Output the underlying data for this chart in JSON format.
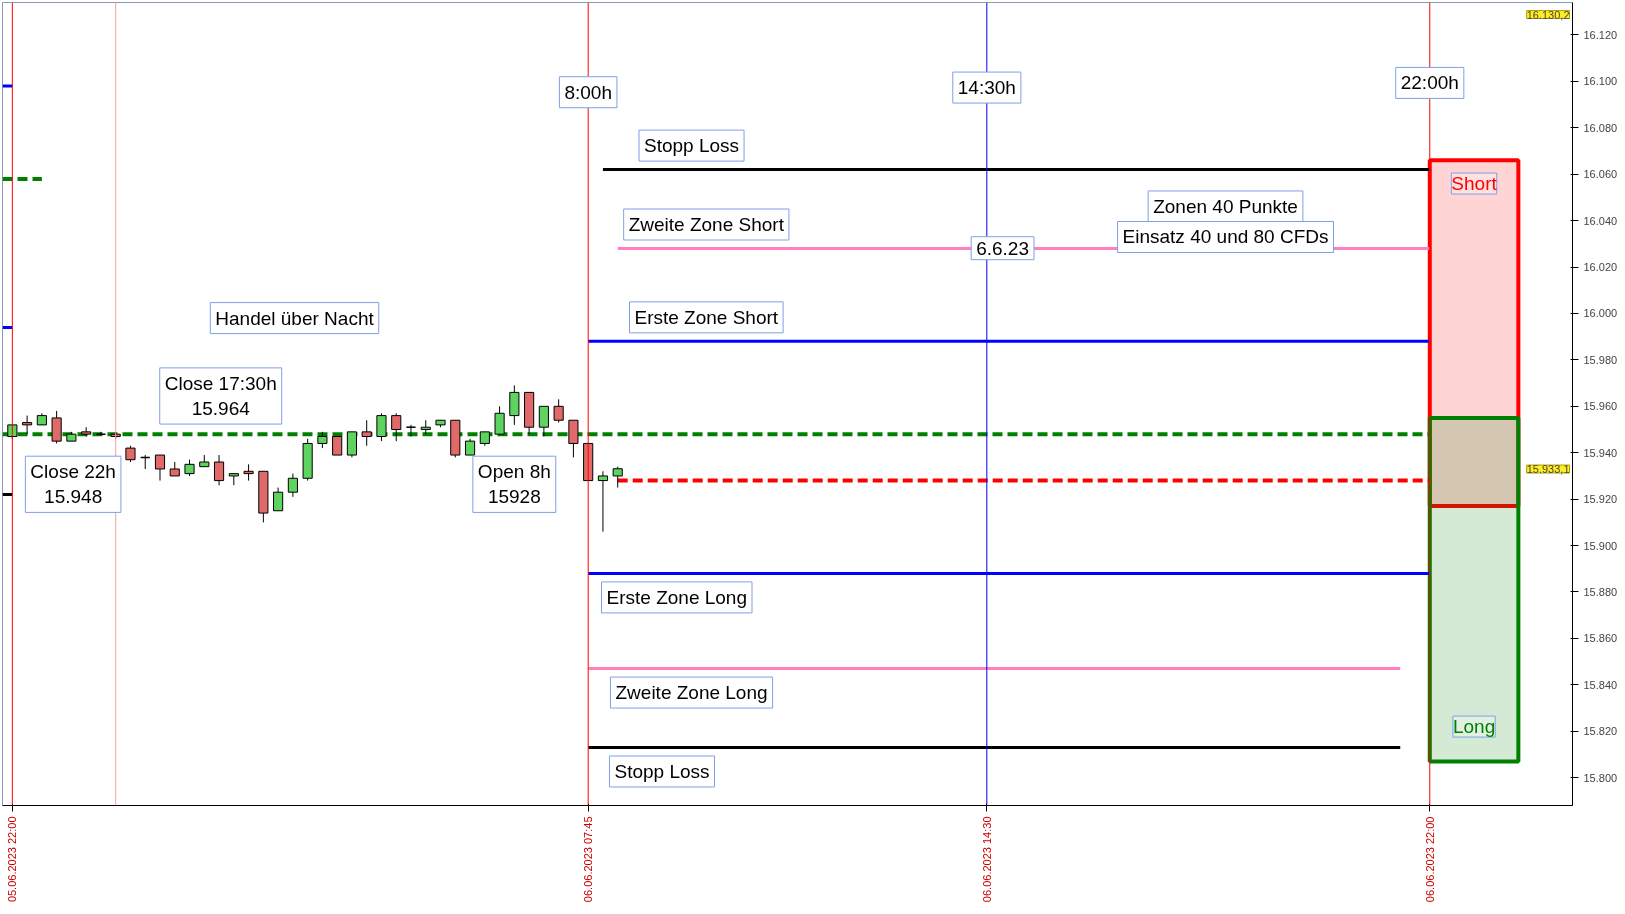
{
  "chart_data": {
    "type": "candlestick",
    "x": [
      "2023-06-05T22:00",
      "2023-06-05T22:15",
      "2023-06-05T22:30",
      "2023-06-05T22:45",
      "2023-06-05T23:00",
      "2023-06-05T23:15",
      "2023-06-05T23:30",
      "2023-06-05T23:45",
      "2023-06-06T00:00",
      "2023-06-06T00:15",
      "2023-06-06T00:30",
      "2023-06-06T00:45",
      "2023-06-06T01:00",
      "2023-06-06T01:15",
      "2023-06-06T01:30",
      "2023-06-06T01:45",
      "2023-06-06T02:00",
      "2023-06-06T02:15",
      "2023-06-06T02:30",
      "2023-06-06T02:45",
      "2023-06-06T03:00",
      "2023-06-06T03:15",
      "2023-06-06T03:30",
      "2023-06-06T03:45",
      "2023-06-06T04:00",
      "2023-06-06T04:15",
      "2023-06-06T04:30",
      "2023-06-06T04:45",
      "2023-06-06T05:00",
      "2023-06-06T05:15",
      "2023-06-06T05:30",
      "2023-06-06T05:45",
      "2023-06-06T06:00",
      "2023-06-06T06:15",
      "2023-06-06T06:30",
      "2023-06-06T06:45",
      "2023-06-06T07:00",
      "2023-06-06T07:15",
      "2023-06-06T07:30",
      "2023-06-06T07:45",
      "2023-06-06T08:00",
      "2023-06-06T08:15"
    ],
    "ohlc": [
      [
        15947,
        15952,
        15946,
        15952
      ],
      [
        15953,
        15956,
        15948,
        15952
      ],
      [
        15952,
        15957,
        15952,
        15956
      ],
      [
        15955,
        15958,
        15944,
        15945
      ],
      [
        15945,
        15949,
        15945,
        15948
      ],
      [
        15949,
        15951,
        15947,
        15948
      ],
      [
        15948,
        15949,
        15948,
        15948
      ],
      [
        15948,
        15949,
        15946,
        15947
      ],
      [
        15942,
        15943,
        15936,
        15937
      ],
      [
        15938,
        15939,
        15933,
        15938
      ],
      [
        15939,
        15939,
        15928,
        15933
      ],
      [
        15933,
        15936,
        15930,
        15930
      ],
      [
        15931,
        15937,
        15930,
        15935
      ],
      [
        15934,
        15939,
        15934,
        15936
      ],
      [
        15936,
        15939,
        15926,
        15928
      ],
      [
        15930,
        15931,
        15926,
        15931
      ],
      [
        15932,
        15935,
        15928,
        15931
      ],
      [
        15932,
        15932,
        15910,
        15914
      ],
      [
        15915,
        15925,
        15915,
        15923
      ],
      [
        15923,
        15931,
        15921,
        15929
      ],
      [
        15929,
        15946,
        15928,
        15944
      ],
      [
        15944,
        15949,
        15942,
        15947
      ],
      [
        15947,
        15947,
        15939,
        15939
      ],
      [
        15939,
        15949,
        15938,
        15949
      ],
      [
        15949,
        15954,
        15943,
        15947
      ],
      [
        15947,
        15957,
        15945,
        15956
      ],
      [
        15956,
        15957,
        15945,
        15950
      ],
      [
        15951,
        15952,
        15947,
        15951
      ],
      [
        15950,
        15954,
        15948,
        15951
      ],
      [
        15952,
        15954,
        15951,
        15954
      ],
      [
        15954,
        15954,
        15938,
        15939
      ],
      [
        15939,
        15946,
        15939,
        15945
      ],
      [
        15944,
        15949,
        15943,
        15949
      ],
      [
        15948,
        15960,
        15948,
        15957
      ],
      [
        15956,
        15969,
        15952,
        15966
      ],
      [
        15966,
        15966,
        15948,
        15951
      ],
      [
        15951,
        15960,
        15947,
        15960
      ],
      [
        15960,
        15963,
        15953,
        15954
      ],
      [
        15954,
        15954,
        15938,
        15944
      ],
      [
        15944,
        15944,
        15928,
        15928
      ],
      [
        15928,
        15932,
        15906,
        15930
      ],
      [
        15930,
        15934,
        15925,
        15933.1
      ]
    ],
    "series": [
      {
        "type": "line",
        "color": "#000000",
        "x": [
          "2023-06-06T08:00",
          "2023-06-06T22:00"
        ],
        "values": [
          16062,
          16062
        ]
      },
      {
        "type": "line",
        "color": "#ff80c0",
        "x": [
          "2023-06-06T08:15",
          "2023-06-06T22:00"
        ],
        "values": [
          16028,
          16028
        ]
      },
      {
        "type": "line",
        "color": "#0000ff",
        "x": [
          "2023-06-06T07:45",
          "2023-06-06T22:00"
        ],
        "values": [
          15988,
          15988
        ]
      },
      {
        "type": "line",
        "color": "#008000",
        "line_style": "dashed",
        "x": [
          "2023-06-05T21:50",
          "2023-06-06T22:00"
        ],
        "values": [
          15948,
          15948
        ]
      },
      {
        "type": "line",
        "color": "#ff0000",
        "line_style": "dashed",
        "x": [
          "2023-06-06T08:15",
          "2023-06-06T22:00"
        ],
        "values": [
          15928,
          15928
        ]
      },
      {
        "type": "line",
        "color": "#0000ff",
        "x": [
          "2023-06-06T07:45",
          "2023-06-06T22:00"
        ],
        "values": [
          15888,
          15888
        ]
      },
      {
        "type": "line",
        "color": "#ff80c0",
        "x": [
          "2023-06-06T07:45",
          "2023-06-06T21:30"
        ],
        "values": [
          15847,
          15847
        ]
      },
      {
        "type": "line",
        "color": "#000000",
        "x": [
          "2023-06-06T07:45",
          "2023-06-06T21:30"
        ],
        "values": [
          15813,
          15813
        ]
      },
      {
        "type": "line",
        "color": "#0000ff",
        "x": [
          "2023-06-05T21:50",
          "2023-06-05T22:00"
        ],
        "values": [
          16098,
          16098
        ]
      },
      {
        "type": "line",
        "color": "#0000ff",
        "x": [
          "2023-06-05T21:50",
          "2023-06-05T22:00"
        ],
        "values": [
          15994,
          15994
        ]
      },
      {
        "type": "line",
        "color": "#008000",
        "line_style": "dashed",
        "x": [
          "2023-06-05T21:50",
          "2023-06-05T22:30"
        ],
        "values": [
          16058,
          16058
        ]
      },
      {
        "type": "line",
        "color": "#000000",
        "x": [
          "2023-06-05T21:50",
          "2023-06-05T22:00"
        ],
        "values": [
          15922,
          15922
        ]
      }
    ],
    "ref_lines": [
      {
        "axis": "x",
        "value": "2023-06-05T22:00",
        "label": null,
        "color": "#ff0000"
      },
      {
        "axis": "x",
        "value": "2023-06-05T23:45",
        "label": null,
        "color": "#f4a0a0"
      },
      {
        "axis": "x",
        "value": "2023-06-06T07:45",
        "label": null,
        "color": "#ff0000"
      },
      {
        "axis": "x",
        "value": "2023-06-06T14:30",
        "label": null,
        "color": "#0000ff"
      },
      {
        "axis": "x",
        "value": "2023-06-06T22:00",
        "label": null,
        "color": "#ff0000"
      }
    ],
    "bands": [
      {
        "axis": "y",
        "from": 15917,
        "to": 16066,
        "label": "Short",
        "color": "#ff0000"
      },
      {
        "axis": "y",
        "from": 15807,
        "to": 15955,
        "label": "Long",
        "color": "#008000"
      }
    ],
    "annotations": [
      {
        "text": "8:00h",
        "x": "2023-06-06T07:45",
        "y": 16085
      },
      {
        "text": "14:30h",
        "x": "2023-06-06T14:30",
        "y": 16087
      },
      {
        "text": "22:00h",
        "x": "2023-06-06T22:00",
        "y": 16089
      },
      {
        "text": "Stopp Loss",
        "x": "2023-06-06T09:30",
        "y": 16062
      },
      {
        "text": "Zweite Zone Short",
        "x": "2023-06-06T09:45",
        "y": 16028
      },
      {
        "text": "Erste Zone Short",
        "x": "2023-06-06T09:45",
        "y": 15988
      },
      {
        "text": "Erste Zone Long",
        "x": "2023-06-06T09:15",
        "y": 15888
      },
      {
        "text": "Zweite Zone Long",
        "x": "2023-06-06T09:30",
        "y": 15847
      },
      {
        "text": "Stopp Loss",
        "x": "2023-06-06T09:00",
        "y": 15813
      },
      "Handel über Nacht",
      "Close 17:30h\n15.964",
      "Close 22h\n15.948",
      "Open 8h\n15928",
      "6.6.23",
      "Zonen 40 Punkte",
      "Einsatz 40 und 80 CFDs",
      "15.933,1",
      "16.130,2"
    ],
    "xlim": [
      "2023-06-05T21:50",
      "2023-06-07T00:25"
    ],
    "ylim": [
      15788,
      16134
    ],
    "xticks": [
      {
        "value": "2023-06-05T22:00",
        "label": "05.06.2023 22:00"
      },
      {
        "value": "2023-06-06T07:45",
        "label": "06.06.2023 07:45"
      },
      {
        "value": "2023-06-06T14:30",
        "label": "06.06.2023 14:30"
      },
      {
        "value": "2023-06-06T22:00",
        "label": "06.06.2023 22:00"
      }
    ],
    "yticks": [
      {
        "value": 15800,
        "label": "15.800"
      },
      {
        "value": 15820,
        "label": "15.820"
      },
      {
        "value": 15840,
        "label": "15.840"
      },
      {
        "value": 15860,
        "label": "15.860"
      },
      {
        "value": 15880,
        "label": "15.880"
      },
      {
        "value": 15900,
        "label": "15.900"
      },
      {
        "value": 15920,
        "label": "15.920"
      },
      {
        "value": 15940,
        "label": "15.940"
      },
      {
        "value": 15960,
        "label": "15.960"
      },
      {
        "value": 15980,
        "label": "15.980"
      },
      {
        "value": 16000,
        "label": "16.000"
      },
      {
        "value": 16020,
        "label": "16.020"
      },
      {
        "value": 16040,
        "label": "16.040"
      },
      {
        "value": 16060,
        "label": "16.060"
      },
      {
        "value": 16080,
        "label": "16.080"
      },
      {
        "value": 16100,
        "label": "16.100"
      },
      {
        "value": 16120,
        "label": "16.120"
      }
    ],
    "grid": false
  }
}
